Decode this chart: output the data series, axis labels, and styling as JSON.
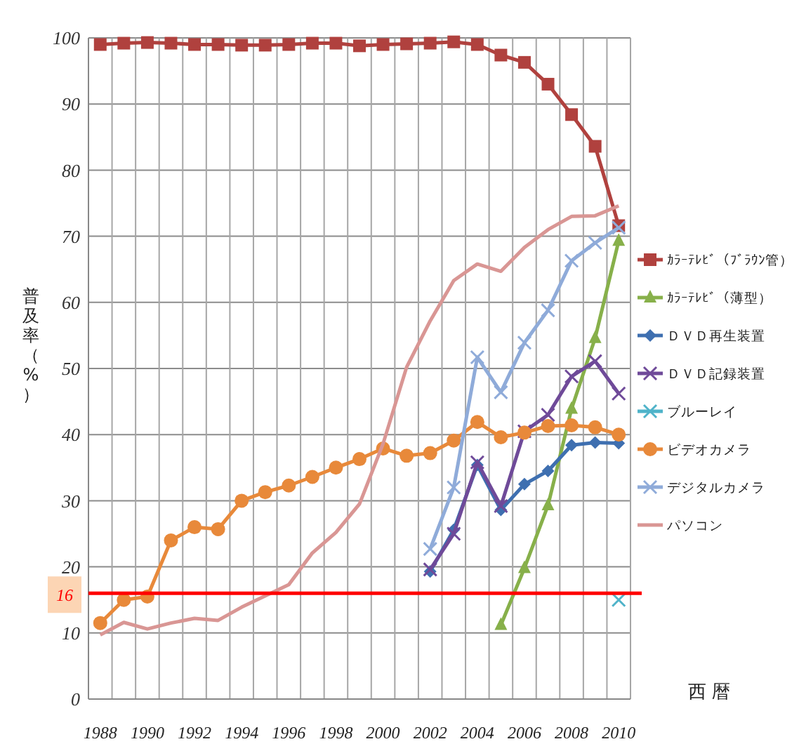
{
  "chart_data": {
    "type": "line",
    "xlabel": "西 暦",
    "ylabel": "普及率（%）",
    "xlim": [
      1987.5,
      2010.5
    ],
    "xticks": [
      {
        "value": 1987.5,
        "label": null
      },
      1988,
      {
        "value": 1988.5,
        "label": null
      },
      {
        "value": 1989.5,
        "label": null
      },
      1990,
      {
        "value": 1990.5,
        "label": null
      },
      {
        "value": 1991.5,
        "label": null
      },
      1992,
      {
        "value": 1992.5,
        "label": null
      },
      {
        "value": 1993.5,
        "label": null
      },
      1994,
      {
        "value": 1994.5,
        "label": null
      },
      {
        "value": 1995.5,
        "label": null
      },
      1996,
      {
        "value": 1996.5,
        "label": null
      },
      {
        "value": 1997.5,
        "label": null
      },
      1998,
      {
        "value": 1998.5,
        "label": null
      },
      {
        "value": 1999.5,
        "label": null
      },
      2000,
      {
        "value": 2000.5,
        "label": null
      },
      {
        "value": 2001.5,
        "label": null
      },
      2002,
      {
        "value": 2002.5,
        "label": null
      },
      {
        "value": 2003.5,
        "label": null
      },
      2004,
      {
        "value": 2004.5,
        "label": null
      },
      {
        "value": 2005.5,
        "label": null
      },
      2006,
      {
        "value": 2006.5,
        "label": null
      },
      {
        "value": 2007.5,
        "label": null
      },
      2008,
      {
        "value": 2008.5,
        "label": null
      },
      {
        "value": 2009.5,
        "label": null
      },
      2010,
      {
        "value": 2010.5,
        "label": null
      }
    ],
    "ylim": [
      0,
      100
    ],
    "yticks": [
      0,
      10,
      20,
      30,
      40,
      50,
      60,
      70,
      80,
      90,
      100
    ],
    "grid": true,
    "legend": "right",
    "line_style": "solid",
    "ref_lines": [
      {
        "axis": "y",
        "value": 16,
        "label": "16",
        "color": "#ff0000"
      }
    ],
    "series": [
      {
        "name": "ｶﾗｰﾃﾚﾋﾞ（ﾌﾞﾗｳﾝ管）",
        "color": "#b0413e",
        "marker": "square",
        "x": [
          1988,
          1989,
          1990,
          1991,
          1992,
          1993,
          1994,
          1995,
          1996,
          1997,
          1998,
          1999,
          2000,
          2001,
          2002,
          2003,
          2004,
          2005,
          2006,
          2007,
          2008,
          2009,
          2010
        ],
        "values": [
          99,
          99.2,
          99.3,
          99.2,
          99,
          99,
          98.9,
          98.9,
          99,
          99.2,
          99.2,
          98.8,
          99,
          99.1,
          99.2,
          99.4,
          99,
          97.4,
          96.3,
          93,
          88.4,
          83.6,
          71.6
        ]
      },
      {
        "name": "ｶﾗｰﾃﾚﾋﾞ（薄型）",
        "color": "#87b04a",
        "marker": "triangle",
        "x": [
          2005,
          2006,
          2007,
          2008,
          2009,
          2010
        ],
        "values": [
          11.2,
          19.8,
          29.3,
          43.9,
          54.6,
          69.3
        ]
      },
      {
        "name": "ＤＶＤ再生装置",
        "color": "#3e6fb0",
        "marker": "diamond",
        "x": [
          2002,
          2003,
          2004,
          2005,
          2006,
          2007,
          2008,
          2009,
          2010
        ],
        "values": [
          19.3,
          25.6,
          35.4,
          28.6,
          32.5,
          34.5,
          38.4,
          38.8,
          38.7
        ]
      },
      {
        "name": "ＤＶＤ記録装置",
        "color": "#6f4a99",
        "marker": "cross",
        "x": [
          2002,
          2003,
          2004,
          2005,
          2006,
          2007,
          2008,
          2009,
          2010
        ],
        "values": [
          19.6,
          25,
          35.8,
          29.2,
          40.5,
          43,
          48.8,
          51.1,
          46.2
        ]
      },
      {
        "name": "ブルーレイ",
        "color": "#4fb3c9",
        "marker": "cross",
        "x": [
          2010
        ],
        "values": [
          15
        ]
      },
      {
        "name": "ビデオカメラ",
        "color": "#e8893a",
        "marker": "circle",
        "x": [
          1988,
          1989,
          1990,
          1991,
          1992,
          1993,
          1994,
          1995,
          1996,
          1997,
          1998,
          1999,
          2000,
          2001,
          2002,
          2003,
          2004,
          2005,
          2006,
          2007,
          2008,
          2009,
          2010
        ],
        "values": [
          11.5,
          15,
          15.5,
          24,
          26,
          25.7,
          30,
          31.3,
          32.3,
          33.6,
          35,
          36.3,
          37.9,
          36.8,
          37.2,
          39.1,
          41.9,
          39.6,
          40.3,
          41.3,
          41.4,
          41.1,
          40
        ]
      },
      {
        "name": "デジタルカメラ",
        "color": "#8fabd9",
        "marker": "cross",
        "x": [
          2002,
          2003,
          2004,
          2005,
          2006,
          2007,
          2008,
          2009,
          2010
        ],
        "values": [
          22.7,
          32,
          51.7,
          46.4,
          53.9,
          58.8,
          66.3,
          69,
          71.3
        ]
      },
      {
        "name": "パソコン",
        "color": "#d99694",
        "marker": "none",
        "x": [
          1988,
          1989,
          1990,
          1991,
          1992,
          1993,
          1994,
          1995,
          1996,
          1997,
          1998,
          1999,
          2000,
          2001,
          2002,
          2003,
          2004,
          2005,
          2006,
          2007,
          2008,
          2009,
          2010
        ],
        "values": [
          9.7,
          11.6,
          10.6,
          11.5,
          12.2,
          11.9,
          13.9,
          15.6,
          17.3,
          22.1,
          25.2,
          29.5,
          38.6,
          50.2,
          57.2,
          63.3,
          65.8,
          64.7,
          68.3,
          71,
          73,
          73.1,
          74.6
        ]
      }
    ]
  }
}
